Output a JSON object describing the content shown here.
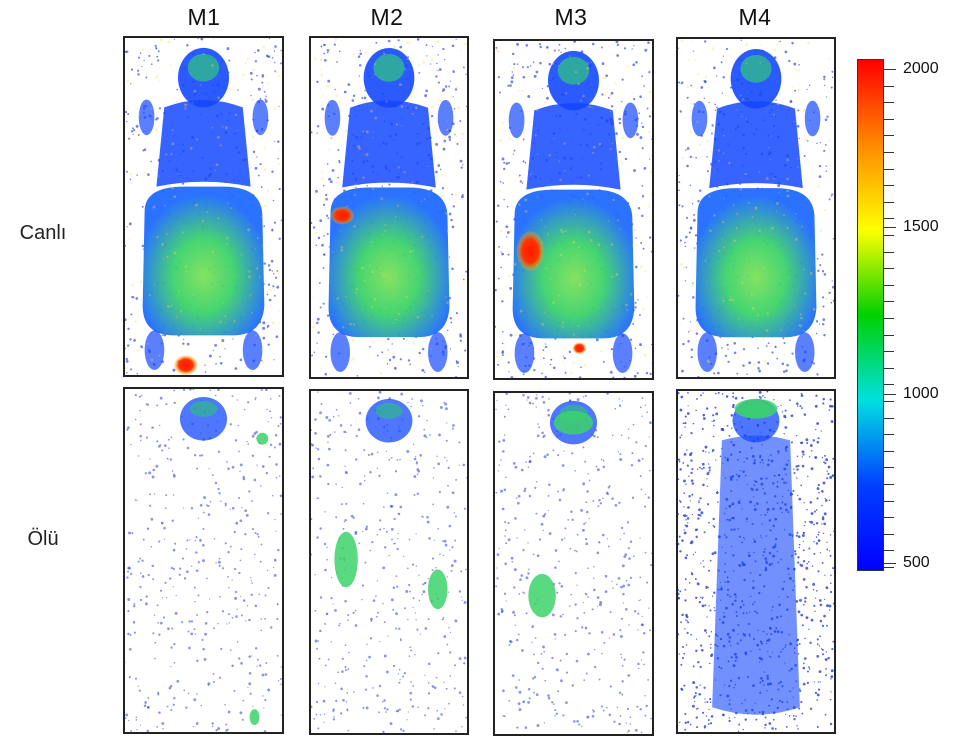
{
  "columns": [
    "M1",
    "M2",
    "M3",
    "M4"
  ],
  "rows": [
    "Canlı",
    "Ölü"
  ],
  "colorbar": {
    "labels": [
      "2000",
      "1500",
      "1000",
      "500"
    ],
    "colors": [
      "#ff0000",
      "#ff8a00",
      "#ffff00",
      "#00d000",
      "#00e0e0",
      "#0040ff",
      "#0000ff"
    ]
  },
  "colors": {
    "sparse_blue": "#2a3fd0",
    "body_blue": "#1448ff",
    "body_green": "#3cd36a",
    "hotspot_red": "#ff1a00",
    "frame": "#222222"
  }
}
